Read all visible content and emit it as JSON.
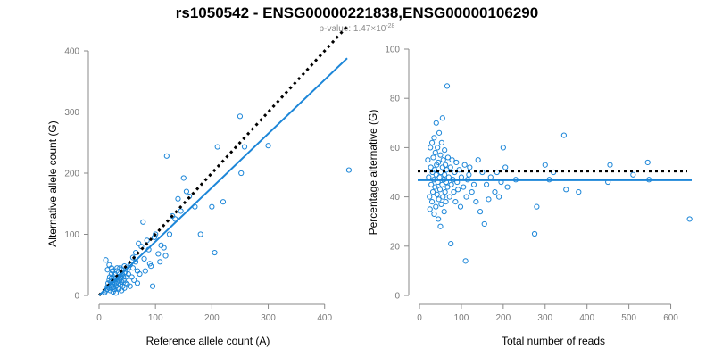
{
  "header": {
    "title": "rs1050542 - ENSG00000221838,ENSG00000106290",
    "subtitle_prefix": "p-value: 1.47×10",
    "subtitle_exponent": "-28"
  },
  "colors": {
    "points": "#1c86d8",
    "fit_line": "#1c86d8",
    "reference_line": "#000000",
    "axis": "#8a8a8a"
  },
  "chart_data": [
    {
      "type": "scatter",
      "xlabel": "Reference allele count (A)",
      "ylabel": "Alternative allele count (G)",
      "xlim": [
        0,
        440
      ],
      "ylim": [
        0,
        400
      ],
      "xticks": [
        0,
        100,
        200,
        300,
        400
      ],
      "yticks": [
        0,
        100,
        200,
        300,
        400
      ],
      "grid": false,
      "legend": "none",
      "reference_line": {
        "style": "dotted",
        "x": [
          0,
          440
        ],
        "y": [
          0,
          440
        ]
      },
      "fit_line": {
        "style": "solid",
        "x": [
          0,
          440
        ],
        "y": [
          0,
          388
        ]
      },
      "points": [
        [
          10,
          5
        ],
        [
          12,
          8
        ],
        [
          14,
          10
        ],
        [
          15,
          14
        ],
        [
          16,
          20
        ],
        [
          18,
          12
        ],
        [
          18,
          25
        ],
        [
          19,
          30
        ],
        [
          20,
          8
        ],
        [
          20,
          16
        ],
        [
          21,
          22
        ],
        [
          22,
          28
        ],
        [
          22,
          35
        ],
        [
          23,
          12
        ],
        [
          24,
          18
        ],
        [
          24,
          40
        ],
        [
          25,
          6
        ],
        [
          25,
          22
        ],
        [
          26,
          14
        ],
        [
          26,
          30
        ],
        [
          27,
          25
        ],
        [
          28,
          10
        ],
        [
          28,
          35
        ],
        [
          29,
          20
        ],
        [
          30,
          15
        ],
        [
          30,
          28
        ],
        [
          31,
          40
        ],
        [
          32,
          22
        ],
        [
          32,
          45
        ],
        [
          33,
          12
        ],
        [
          34,
          30
        ],
        [
          35,
          20
        ],
        [
          35,
          38
        ],
        [
          36,
          25
        ],
        [
          37,
          45
        ],
        [
          38,
          18
        ],
        [
          38,
          32
        ],
        [
          39,
          28
        ],
        [
          40,
          22
        ],
        [
          40,
          42
        ],
        [
          41,
          35
        ],
        [
          42,
          15
        ],
        [
          43,
          30
        ],
        [
          44,
          25
        ],
        [
          45,
          48
        ],
        [
          46,
          38
        ],
        [
          47,
          20
        ],
        [
          48,
          30
        ],
        [
          50,
          42
        ],
        [
          52,
          35
        ],
        [
          55,
          50
        ],
        [
          58,
          30
        ],
        [
          60,
          45
        ],
        [
          62,
          25
        ],
        [
          65,
          55
        ],
        [
          68,
          40
        ],
        [
          15,
          42
        ],
        [
          12,
          58
        ],
        [
          18,
          50
        ],
        [
          22,
          45
        ],
        [
          30,
          4
        ],
        [
          35,
          10
        ],
        [
          40,
          8
        ],
        [
          45,
          12
        ],
        [
          50,
          18
        ],
        [
          55,
          15
        ],
        [
          60,
          62
        ],
        [
          65,
          70
        ],
        [
          68,
          20
        ],
        [
          70,
          85
        ],
        [
          72,
          35
        ],
        [
          75,
          80
        ],
        [
          78,
          120
        ],
        [
          80,
          60
        ],
        [
          82,
          40
        ],
        [
          85,
          90
        ],
        [
          88,
          75
        ],
        [
          90,
          52
        ],
        [
          92,
          48
        ],
        [
          95,
          15
        ],
        [
          98,
          95
        ],
        [
          100,
          100
        ],
        [
          105,
          68
        ],
        [
          108,
          55
        ],
        [
          110,
          82
        ],
        [
          115,
          78
        ],
        [
          118,
          65
        ],
        [
          120,
          228
        ],
        [
          125,
          100
        ],
        [
          130,
          130
        ],
        [
          135,
          125
        ],
        [
          140,
          158
        ],
        [
          145,
          138
        ],
        [
          150,
          192
        ],
        [
          155,
          170
        ],
        [
          160,
          162
        ],
        [
          170,
          145
        ],
        [
          180,
          100
        ],
        [
          200,
          145
        ],
        [
          205,
          70
        ],
        [
          210,
          243
        ],
        [
          220,
          153
        ],
        [
          250,
          293
        ],
        [
          252,
          200
        ],
        [
          258,
          243
        ],
        [
          300,
          245
        ],
        [
          443,
          205
        ]
      ]
    },
    {
      "type": "scatter",
      "xlabel": "Total number of reads",
      "ylabel": "Percentage alternative (G)",
      "xlim": [
        0,
        650
      ],
      "ylim": [
        0,
        100
      ],
      "xticks": [
        0,
        100,
        200,
        300,
        400,
        500,
        600
      ],
      "yticks": [
        0,
        20,
        40,
        60,
        80,
        100
      ],
      "grid": false,
      "legend": "none",
      "reference_line": {
        "style": "dotted",
        "y": 50.5
      },
      "fit_line": {
        "style": "solid",
        "y": 46.8
      },
      "points": [
        [
          20,
          55
        ],
        [
          22,
          48
        ],
        [
          24,
          40
        ],
        [
          25,
          35
        ],
        [
          26,
          60
        ],
        [
          27,
          52
        ],
        [
          28,
          45
        ],
        [
          30,
          38
        ],
        [
          30,
          62
        ],
        [
          31,
          50
        ],
        [
          32,
          42
        ],
        [
          33,
          56
        ],
        [
          34,
          47
        ],
        [
          35,
          33
        ],
        [
          35,
          64
        ],
        [
          36,
          51
        ],
        [
          37,
          44
        ],
        [
          38,
          58
        ],
        [
          39,
          36
        ],
        [
          40,
          49
        ],
        [
          40,
          70
        ],
        [
          41,
          53
        ],
        [
          42,
          41
        ],
        [
          43,
          60
        ],
        [
          44,
          46
        ],
        [
          45,
          31
        ],
        [
          45,
          54
        ],
        [
          46,
          39
        ],
        [
          47,
          66
        ],
        [
          48,
          48
        ],
        [
          49,
          43
        ],
        [
          50,
          57
        ],
        [
          50,
          28
        ],
        [
          51,
          50
        ],
        [
          52,
          37
        ],
        [
          53,
          62
        ],
        [
          54,
          45
        ],
        [
          55,
          52
        ],
        [
          55,
          72
        ],
        [
          56,
          40
        ],
        [
          57,
          55
        ],
        [
          58,
          47
        ],
        [
          59,
          34
        ],
        [
          60,
          59
        ],
        [
          60,
          49
        ],
        [
          61,
          42
        ],
        [
          62,
          53
        ],
        [
          63,
          38
        ],
        [
          64,
          46
        ],
        [
          65,
          51
        ],
        [
          66,
          85
        ],
        [
          67,
          44
        ],
        [
          68,
          56
        ],
        [
          70,
          48
        ],
        [
          72,
          40
        ],
        [
          74,
          52
        ],
        [
          75,
          21
        ],
        [
          76,
          45
        ],
        [
          78,
          55
        ],
        [
          80,
          47
        ],
        [
          82,
          42
        ],
        [
          84,
          50
        ],
        [
          86,
          38
        ],
        [
          88,
          54
        ],
        [
          90,
          46
        ],
        [
          92,
          43
        ],
        [
          95,
          51
        ],
        [
          98,
          36
        ],
        [
          100,
          48
        ],
        [
          105,
          44
        ],
        [
          108,
          53
        ],
        [
          110,
          14
        ],
        [
          112,
          40
        ],
        [
          115,
          47
        ],
        [
          118,
          49
        ],
        [
          120,
          52
        ],
        [
          125,
          42
        ],
        [
          130,
          45
        ],
        [
          135,
          38
        ],
        [
          140,
          55
        ],
        [
          145,
          34
        ],
        [
          150,
          50
        ],
        [
          155,
          29
        ],
        [
          160,
          45
        ],
        [
          165,
          39
        ],
        [
          170,
          48
        ],
        [
          180,
          42
        ],
        [
          185,
          50
        ],
        [
          190,
          40
        ],
        [
          195,
          46
        ],
        [
          200,
          60
        ],
        [
          205,
          52
        ],
        [
          210,
          44
        ],
        [
          230,
          47
        ],
        [
          275,
          25
        ],
        [
          280,
          36
        ],
        [
          300,
          53
        ],
        [
          310,
          47
        ],
        [
          320,
          50
        ],
        [
          345,
          65
        ],
        [
          350,
          43
        ],
        [
          380,
          42
        ],
        [
          450,
          46
        ],
        [
          455,
          53
        ],
        [
          510,
          49
        ],
        [
          545,
          54
        ],
        [
          548,
          47
        ],
        [
          645,
          31
        ]
      ]
    }
  ]
}
